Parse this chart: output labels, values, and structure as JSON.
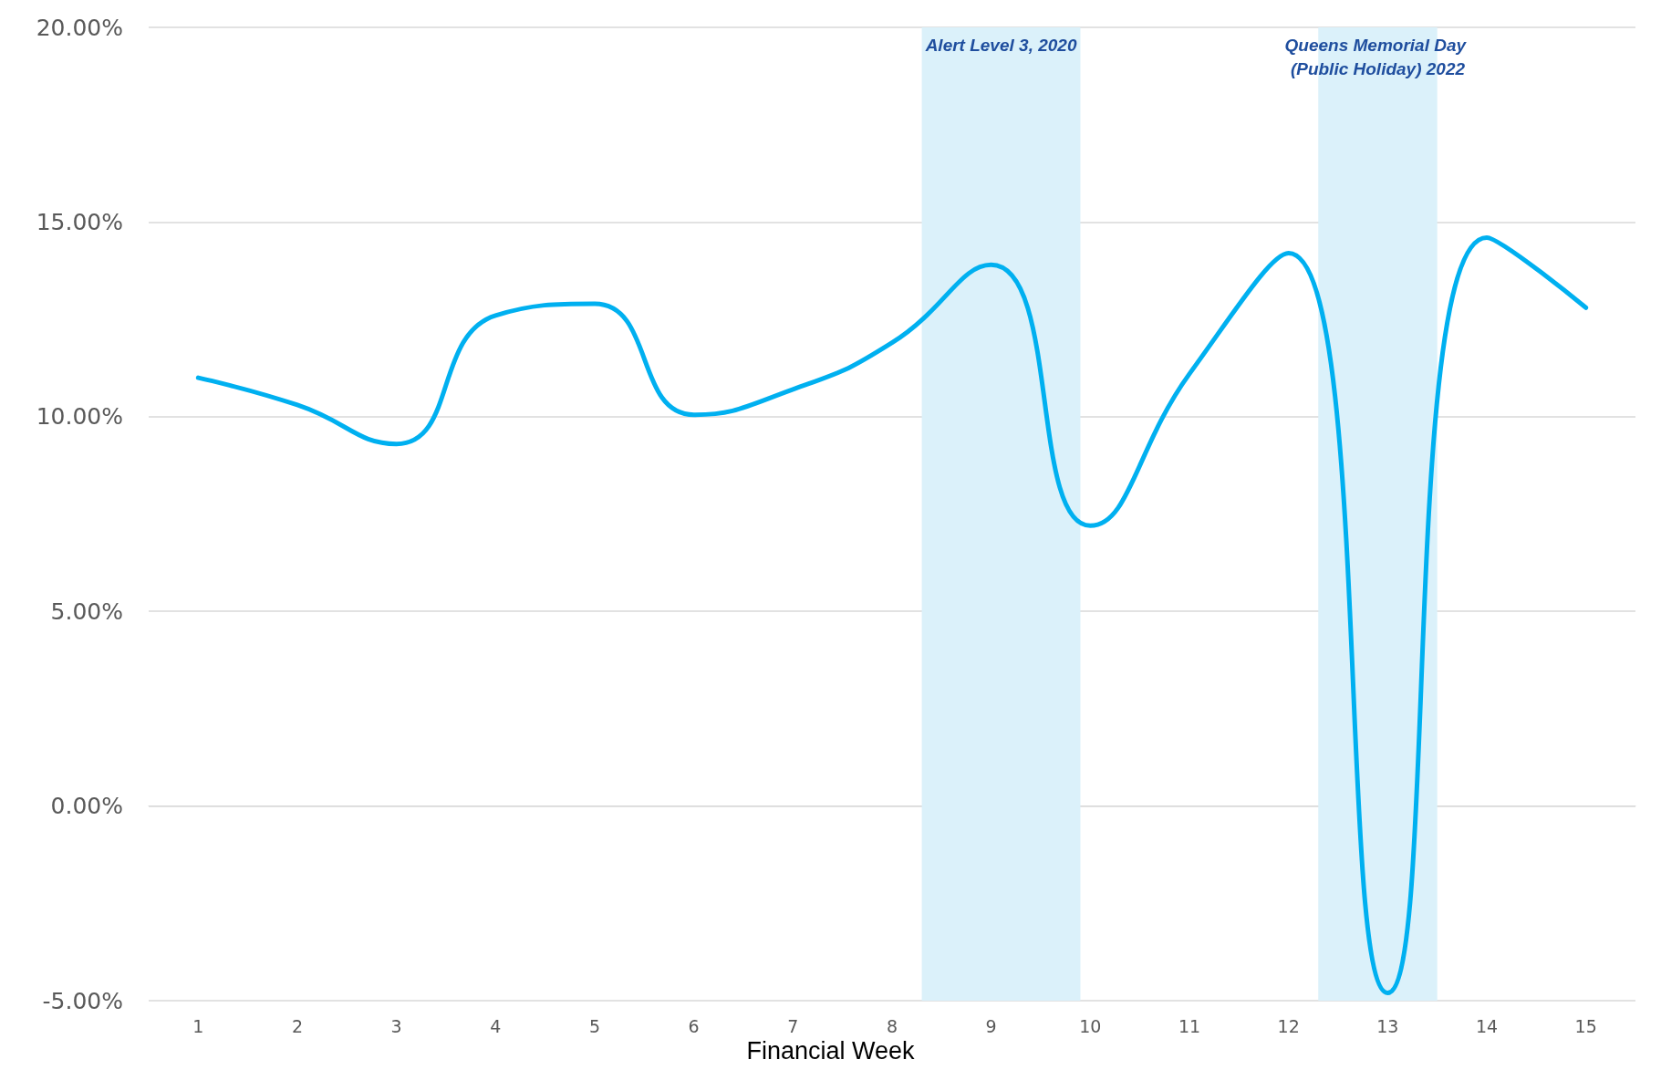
{
  "chart_data": {
    "type": "line",
    "xlabel": "Financial Week",
    "x": [
      1,
      2,
      3,
      4,
      5,
      6,
      7,
      8,
      9,
      10,
      11,
      12,
      13,
      14,
      15
    ],
    "series": [
      {
        "color": "#00b0f0",
        "values": [
          11.0,
          10.3,
          9.3,
          12.6,
          12.9,
          10.05,
          10.7,
          11.9,
          13.9,
          7.2,
          11.1,
          14.2,
          -4.8,
          14.6,
          12.8
        ]
      }
    ],
    "xlim": [
      0.5,
      15.5
    ],
    "xticks": [
      1,
      2,
      3,
      4,
      5,
      6,
      7,
      8,
      9,
      10,
      11,
      12,
      13,
      14,
      15
    ],
    "ylim": [
      -5,
      20
    ],
    "yticks": [
      {
        "value": -5,
        "label": "-5.00%"
      },
      {
        "value": 0,
        "label": "0.00%"
      },
      {
        "value": 5,
        "label": "5.00%"
      },
      {
        "value": 10,
        "label": "10.00%"
      },
      {
        "value": 15,
        "label": "15.00%"
      },
      {
        "value": 20,
        "label": "20.00%"
      }
    ],
    "bands": [
      {
        "axis": "x",
        "from": 8.3,
        "to": 9.9,
        "label": "Alert Level 3, 2020",
        "color": "#dbf1fa"
      },
      {
        "axis": "x",
        "from": 12.3,
        "to": 13.5,
        "label": "Queens Memorial Day (Public Holiday) 2022",
        "color": "#dbf1fa"
      }
    ],
    "grid": "y",
    "marker": "none",
    "line_style": "solid"
  }
}
